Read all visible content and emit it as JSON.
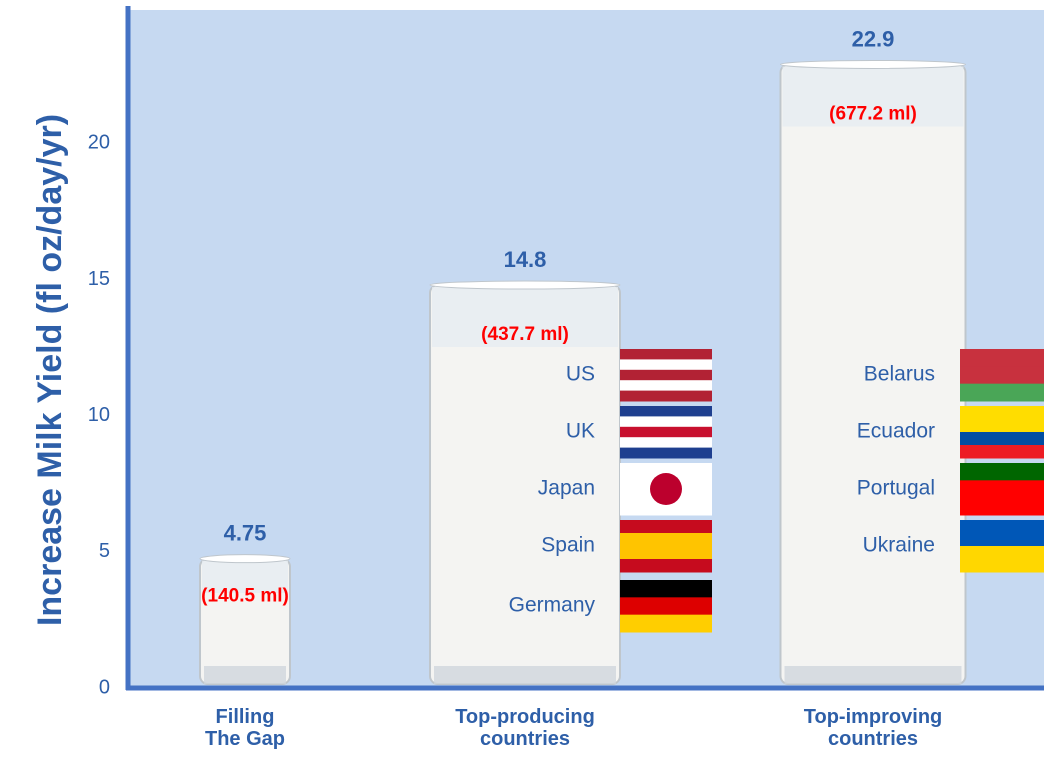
{
  "chart_data": {
    "type": "bar",
    "y_label": "Increase Milk Yield (fl oz/day/yr)",
    "categories": [
      "Filling The Gap",
      "Top-producing countries",
      "Top-improving countries"
    ],
    "values": [
      4.75,
      14.8,
      22.9
    ],
    "ml_labels": [
      "(140.5 ml)",
      "(437.7 ml)",
      "(677.2 ml)"
    ],
    "countries": [
      [],
      [
        "US",
        "UK",
        "Japan",
        "Spain",
        "Germany"
      ],
      [
        "Belarus",
        "Ecuador",
        "Portugal",
        "Ukraine"
      ]
    ],
    "color": "#f4f4f2",
    "ylim": [
      0,
      24.9
    ],
    "yticks": [
      0,
      5,
      10,
      15,
      20
    ]
  }
}
